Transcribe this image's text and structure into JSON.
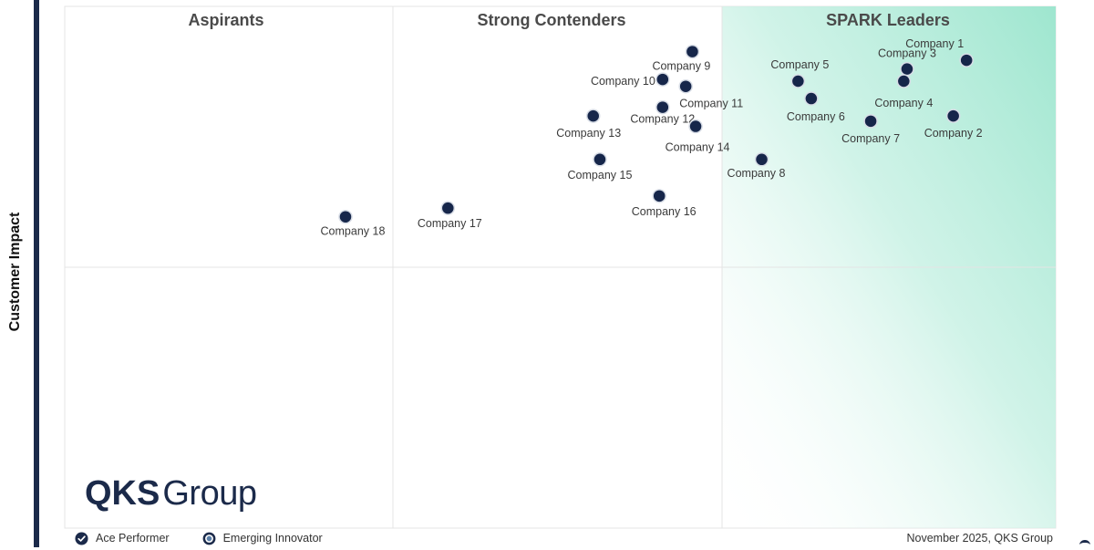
{
  "chart_data": {
    "type": "scatter",
    "title": "",
    "xlabel": "",
    "ylabel": "Customer Impact",
    "xlim": [
      0,
      3
    ],
    "ylim": [
      0,
      3
    ],
    "grid": true,
    "quadrants": [
      {
        "name": "Aspirants"
      },
      {
        "name": "Strong Contenders"
      },
      {
        "name": "SPARK Leaders"
      }
    ],
    "points": [
      {
        "label": "Company 1",
        "x": 2.73,
        "y": 2.69
      },
      {
        "label": "Company 2",
        "x": 2.69,
        "y": 2.37
      },
      {
        "label": "Company 3",
        "x": 2.55,
        "y": 2.64
      },
      {
        "label": "Company 4",
        "x": 2.54,
        "y": 2.57
      },
      {
        "label": "Company 5",
        "x": 2.22,
        "y": 2.57
      },
      {
        "label": "Company 6",
        "x": 2.26,
        "y": 2.47
      },
      {
        "label": "Company 7",
        "x": 2.44,
        "y": 2.34
      },
      {
        "label": "Company 8",
        "x": 2.11,
        "y": 2.12
      },
      {
        "label": "Company 9",
        "x": 1.9,
        "y": 2.74
      },
      {
        "label": "Company 10",
        "x": 1.81,
        "y": 2.58
      },
      {
        "label": "Company 11",
        "x": 1.88,
        "y": 2.54
      },
      {
        "label": "Company 12",
        "x": 1.81,
        "y": 2.42
      },
      {
        "label": "Company 13",
        "x": 1.6,
        "y": 2.37
      },
      {
        "label": "Company 14",
        "x": 1.91,
        "y": 2.31
      },
      {
        "label": "Company 15",
        "x": 1.62,
        "y": 2.12
      },
      {
        "label": "Company 16",
        "x": 1.8,
        "y": 1.91
      },
      {
        "label": "Company 17",
        "x": 1.16,
        "y": 1.84
      },
      {
        "label": "Company 18",
        "x": 0.85,
        "y": 1.79
      }
    ],
    "legend": [
      {
        "label": "Ace Performer",
        "icon": "check-circle-icon"
      },
      {
        "label": "Emerging Innovator",
        "icon": "ring-circle-icon"
      }
    ],
    "credit": "November 2025, QKS Group"
  },
  "logo": {
    "bold": "QKS",
    "rest": "Group"
  },
  "colors": {
    "marker": "#16264a",
    "leader_gradient": "#9ee6cf",
    "quadrant_heading": "#4a4a4a",
    "brand": "#1b2a4a"
  }
}
